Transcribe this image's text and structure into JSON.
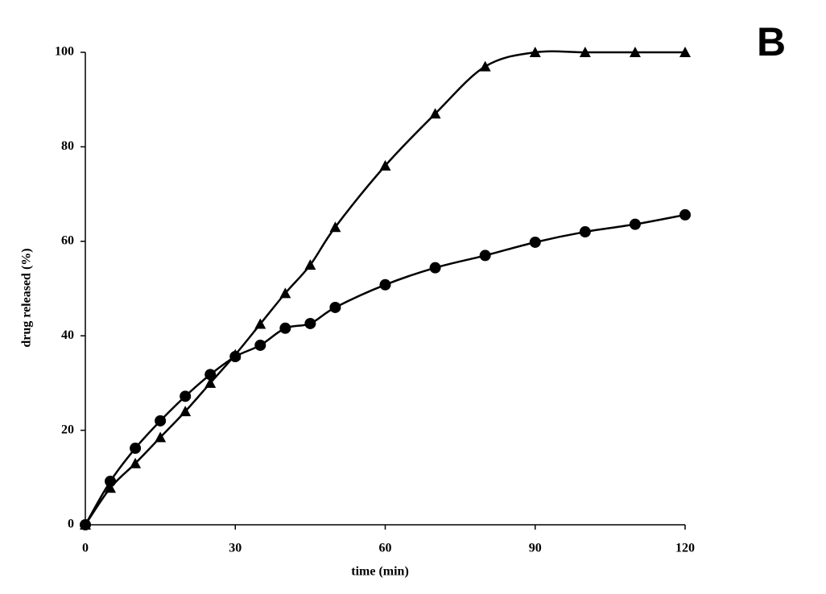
{
  "chart_data": {
    "type": "line",
    "annotation": "B",
    "xlabel": "time (min)",
    "ylabel": "drug released (%)",
    "x": [
      0,
      5,
      10,
      15,
      20,
      25,
      30,
      35,
      40,
      45,
      50,
      60,
      70,
      80,
      90,
      100,
      110,
      120
    ],
    "series": [
      {
        "color": "#000000",
        "marker": "triangle",
        "values": [
          0,
          7.8,
          13,
          18.5,
          24,
          30,
          36,
          42.5,
          49,
          55,
          63,
          76,
          87,
          97,
          100,
          100,
          100,
          100
        ]
      },
      {
        "color": "#000000",
        "marker": "circle",
        "values": [
          0,
          9.2,
          16.2,
          22,
          27.2,
          31.8,
          35.6,
          38,
          41.6,
          42.6,
          46,
          50.8,
          54.4,
          57,
          59.8,
          62,
          63.6,
          65.6
        ]
      }
    ],
    "xlim": [
      0,
      120
    ],
    "xticks": [
      0,
      30,
      60,
      90,
      120
    ],
    "ylim": [
      0,
      100
    ],
    "yticks": [
      0,
      20,
      40,
      60,
      80,
      100
    ],
    "grid": false
  }
}
